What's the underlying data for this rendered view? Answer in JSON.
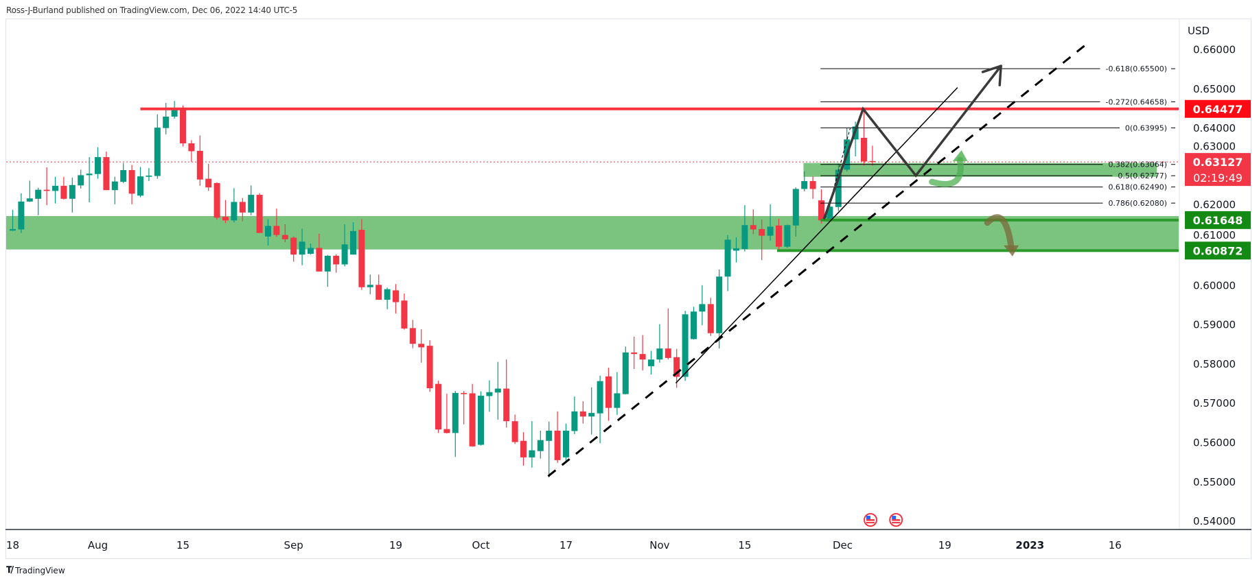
{
  "header": {
    "published_line": "Ross-J-Burland published on TradingView.com, Dec 06, 2022 14:40 UTC-5"
  },
  "footer": {
    "logo_text": "TradingView",
    "logo_mark": "TV"
  },
  "colors": {
    "up": "#089981",
    "down": "#f23645",
    "resistance_line": "#f7323f",
    "resistance_badge": "#ff0a14",
    "last_price_badge": "#f23645",
    "support_badge": "#138a13",
    "support_line": "#2a9a2a",
    "zone_fill": "#7bc47f",
    "drawing": "#3a3a3a",
    "trendline": "#000000"
  },
  "chart_data": {
    "type": "candlestick",
    "currency": "USD",
    "ylim": [
      0.54,
      0.66
    ],
    "y_ticks": [
      "0.66000",
      "0.65000",
      "0.64000",
      "0.63000",
      "0.62000",
      "0.61000",
      "0.60000",
      "0.59000",
      "0.58000",
      "0.57000",
      "0.56000",
      "0.55000",
      "0.54000"
    ],
    "y_tick_values": [
      0.66,
      0.65,
      0.64,
      0.63,
      0.62,
      0.61,
      0.6,
      0.59,
      0.58,
      0.57,
      0.56,
      0.55,
      0.54
    ],
    "x_ticks": [
      {
        "label": "18",
        "bar": 0,
        "bold": false
      },
      {
        "label": "Aug",
        "bar": 10,
        "bold": false
      },
      {
        "label": "15",
        "bar": 20,
        "bold": false
      },
      {
        "label": "Sep",
        "bar": 33,
        "bold": false
      },
      {
        "label": "19",
        "bar": 45,
        "bold": false
      },
      {
        "label": "Oct",
        "bar": 55,
        "bold": false
      },
      {
        "label": "17",
        "bar": 65,
        "bold": false
      },
      {
        "label": "Nov",
        "bar": 76,
        "bold": false
      },
      {
        "label": "15",
        "bar": 86,
        "bold": false
      },
      {
        "label": "Dec",
        "bar": 97.5,
        "bold": false
      },
      {
        "label": "19",
        "bar": 109.5,
        "bold": false
      },
      {
        "label": "2023",
        "bar": 119.5,
        "bold": true
      },
      {
        "label": "16",
        "bar": 129.5,
        "bold": false
      }
    ],
    "ohlc": [
      [
        0.6138,
        0.6191,
        0.6137,
        0.6142
      ],
      [
        0.6141,
        0.6233,
        0.6132,
        0.6212
      ],
      [
        0.6212,
        0.6265,
        0.6211,
        0.622
      ],
      [
        0.6219,
        0.6247,
        0.6177,
        0.6242
      ],
      [
        0.6242,
        0.6299,
        0.6203,
        0.6239
      ],
      [
        0.6239,
        0.6275,
        0.6207,
        0.6252
      ],
      [
        0.6252,
        0.6275,
        0.6217,
        0.6219
      ],
      [
        0.6219,
        0.6273,
        0.6184,
        0.6254
      ],
      [
        0.6253,
        0.6293,
        0.6245,
        0.6279
      ],
      [
        0.6279,
        0.6325,
        0.621,
        0.6283
      ],
      [
        0.6282,
        0.635,
        0.627,
        0.6325
      ],
      [
        0.6325,
        0.6339,
        0.6241,
        0.6241
      ],
      [
        0.6241,
        0.6275,
        0.6205,
        0.6263
      ],
      [
        0.6262,
        0.631,
        0.6259,
        0.6292
      ],
      [
        0.6292,
        0.6305,
        0.6205,
        0.6232
      ],
      [
        0.6227,
        0.63,
        0.6223,
        0.6276
      ],
      [
        0.6275,
        0.6297,
        0.6264,
        0.6278
      ],
      [
        0.6277,
        0.6434,
        0.627,
        0.64
      ],
      [
        0.6399,
        0.6463,
        0.6383,
        0.6428
      ],
      [
        0.6428,
        0.6468,
        0.6423,
        0.6446
      ],
      [
        0.6446,
        0.6456,
        0.6352,
        0.636
      ],
      [
        0.636,
        0.6368,
        0.6313,
        0.634
      ],
      [
        0.6341,
        0.638,
        0.6252,
        0.6268
      ],
      [
        0.627,
        0.6308,
        0.6239,
        0.6248
      ],
      [
        0.6259,
        0.6261,
        0.6166,
        0.6171
      ],
      [
        0.6173,
        0.6216,
        0.6157,
        0.6164
      ],
      [
        0.6164,
        0.6246,
        0.6159,
        0.6211
      ],
      [
        0.6211,
        0.6221,
        0.6162,
        0.6184
      ],
      [
        0.6184,
        0.6253,
        0.6177,
        0.6229
      ],
      [
        0.6229,
        0.6233,
        0.6132,
        0.6132
      ],
      [
        0.6123,
        0.6167,
        0.61,
        0.615
      ],
      [
        0.615,
        0.6194,
        0.6122,
        0.6127
      ],
      [
        0.6127,
        0.6154,
        0.6109,
        0.6116
      ],
      [
        0.612,
        0.6123,
        0.6059,
        0.6077
      ],
      [
        0.6077,
        0.6143,
        0.605,
        0.611
      ],
      [
        0.6079,
        0.6105,
        0.6077,
        0.6094
      ],
      [
        0.6094,
        0.613,
        0.6034,
        0.6034
      ],
      [
        0.6034,
        0.6076,
        0.5995,
        0.6074
      ],
      [
        0.6074,
        0.6078,
        0.6031,
        0.6052
      ],
      [
        0.6052,
        0.6154,
        0.6047,
        0.6103
      ],
      [
        0.6077,
        0.6159,
        0.6077,
        0.6137
      ],
      [
        0.614,
        0.6167,
        0.5987,
        0.5994
      ],
      [
        0.5994,
        0.6026,
        0.5976,
        0.6
      ],
      [
        0.6,
        0.6026,
        0.5962,
        0.5962
      ],
      [
        0.5962,
        0.5993,
        0.5938,
        0.5989
      ],
      [
        0.5986,
        0.6002,
        0.5927,
        0.5956
      ],
      [
        0.596,
        0.5978,
        0.5886,
        0.5889
      ],
      [
        0.589,
        0.5911,
        0.5839,
        0.585
      ],
      [
        0.585,
        0.5887,
        0.5802,
        0.5841
      ],
      [
        0.5845,
        0.5859,
        0.5728,
        0.5737
      ],
      [
        0.5748,
        0.5756,
        0.5623,
        0.5632
      ],
      [
        0.5633,
        0.5723,
        0.5622,
        0.5623
      ],
      [
        0.5623,
        0.573,
        0.5562,
        0.5725
      ],
      [
        0.5725,
        0.573,
        0.5645,
        0.5722
      ],
      [
        0.5724,
        0.5748,
        0.5588,
        0.5589
      ],
      [
        0.5593,
        0.5729,
        0.5591,
        0.5718
      ],
      [
        0.5717,
        0.5757,
        0.5677,
        0.5727
      ],
      [
        0.5726,
        0.5804,
        0.5657,
        0.5736
      ],
      [
        0.5736,
        0.581,
        0.5637,
        0.5653
      ],
      [
        0.5653,
        0.567,
        0.5595,
        0.56
      ],
      [
        0.5603,
        0.5625,
        0.554,
        0.5561
      ],
      [
        0.5561,
        0.5653,
        0.5535,
        0.5579
      ],
      [
        0.5577,
        0.5629,
        0.5558,
        0.5605
      ],
      [
        0.5603,
        0.5652,
        0.551,
        0.5629
      ],
      [
        0.5629,
        0.5678,
        0.5547,
        0.5554
      ],
      [
        0.5561,
        0.5647,
        0.555,
        0.5629
      ],
      [
        0.5628,
        0.5716,
        0.562,
        0.5678
      ],
      [
        0.5678,
        0.5704,
        0.5647,
        0.5665
      ],
      [
        0.5665,
        0.5739,
        0.5619,
        0.5674
      ],
      [
        0.5673,
        0.5769,
        0.5597,
        0.5755
      ],
      [
        0.5767,
        0.5789,
        0.5654,
        0.5687
      ],
      [
        0.5687,
        0.5778,
        0.5669,
        0.5724
      ],
      [
        0.5722,
        0.5843,
        0.5721,
        0.5828
      ],
      [
        0.5828,
        0.5868,
        0.5786,
        0.5824
      ],
      [
        0.5824,
        0.5872,
        0.5782,
        0.581
      ],
      [
        0.5793,
        0.5832,
        0.5772,
        0.581
      ],
      [
        0.581,
        0.59,
        0.5802,
        0.5838
      ],
      [
        0.5838,
        0.594,
        0.581,
        0.5814
      ],
      [
        0.5816,
        0.5837,
        0.5738,
        0.5766
      ],
      [
        0.5766,
        0.5934,
        0.5756,
        0.5925
      ],
      [
        0.5862,
        0.5944,
        0.5861,
        0.5932
      ],
      [
        0.5932,
        0.5999,
        0.5897,
        0.5951
      ],
      [
        0.5951,
        0.5967,
        0.587,
        0.5877
      ],
      [
        0.5877,
        0.6039,
        0.5838,
        0.6021
      ],
      [
        0.6021,
        0.6127,
        0.5984,
        0.6115
      ],
      [
        0.6087,
        0.6121,
        0.6057,
        0.6093
      ],
      [
        0.6091,
        0.6203,
        0.6085,
        0.6152
      ],
      [
        0.6152,
        0.6192,
        0.6129,
        0.6141
      ],
      [
        0.6142,
        0.6166,
        0.6063,
        0.6125
      ],
      [
        0.6125,
        0.6205,
        0.6112,
        0.6148
      ],
      [
        0.6151,
        0.6168,
        0.6089,
        0.6097
      ],
      [
        0.6097,
        0.6153,
        0.6094,
        0.6152
      ],
      [
        0.6151,
        0.6248,
        0.6123,
        0.6244
      ],
      [
        0.6244,
        0.6289,
        0.6238,
        0.6264
      ],
      [
        0.6264,
        0.6276,
        0.6219,
        0.6244
      ],
      [
        0.6215,
        0.6243,
        0.6156,
        0.6164
      ],
      [
        0.6164,
        0.6218,
        0.6161,
        0.6199
      ],
      [
        0.6198,
        0.6309,
        0.6188,
        0.6293
      ],
      [
        0.6293,
        0.6399,
        0.6288,
        0.637
      ],
      [
        0.637,
        0.6415,
        0.6327,
        0.6403
      ],
      [
        0.6374,
        0.6447,
        0.6304,
        0.6314
      ],
      [
        0.6315,
        0.6354,
        0.6303,
        0.6313
      ]
    ],
    "last_price": "0.63127",
    "countdown": "02:19:49",
    "levels": {
      "resistance": {
        "price": 0.64477,
        "label": "0.64477",
        "from_bar": 15
      },
      "support_top": {
        "price": 0.61648,
        "label": "0.61648",
        "from_bar": 94.9
      },
      "support_bottom": {
        "price": 0.60872,
        "label": "0.60872",
        "from_bar": 89.8
      }
    },
    "zones": [
      {
        "top": 0.6175,
        "bottom": 0.609,
        "from_bar": -2,
        "to_bar": 138.3
      },
      {
        "top": 0.631,
        "bottom": 0.6275,
        "from_bar": 92.9,
        "to_bar": 134.4
      }
    ],
    "fib_from_bar": 94.9,
    "fib_levels": [
      {
        "label": "-0.618(0.65500)",
        "price": 0.655
      },
      {
        "label": "-0.272(0.64658)",
        "price": 0.64658
      },
      {
        "label": "0(0.63995)",
        "price": 0.63995
      },
      {
        "label": "0.382(0.63064)",
        "price": 0.63064
      },
      {
        "label": "0.5(0.62777)",
        "price": 0.62777
      },
      {
        "label": "0.618(0.62490)",
        "price": 0.6249
      },
      {
        "label": "0.786(0.62080)",
        "price": 0.6208
      }
    ],
    "trendlines": [
      {
        "style": "solid",
        "points": [
          [
            77.9,
            0.575
          ],
          [
            111.0,
            0.6502
          ]
        ]
      },
      {
        "style": "dashed",
        "points": [
          [
            62.9,
            0.5513
          ],
          [
            126.0,
            0.661
          ]
        ]
      },
      {
        "style": "thin-dashed",
        "points": [
          [
            95.5,
            0.617
          ],
          [
            98.4,
            0.64
          ]
        ]
      }
    ],
    "projection_path": [
      [
        95.3,
        0.6167
      ],
      [
        99.9,
        0.64477
      ],
      [
        106.1,
        0.6278
      ],
      [
        116.1,
        0.6557
      ]
    ],
    "curved_arrows": [
      {
        "direction": "up",
        "color": "#4caf50",
        "points": [
          [
            108.0,
            0.6262
          ],
          [
            110.4,
            0.6255
          ],
          [
            111.3,
            0.6318
          ]
        ]
      },
      {
        "direction": "down",
        "color": "#7a6a3a",
        "points": [
          [
            114.5,
            0.6158
          ],
          [
            116.6,
            0.618
          ],
          [
            117.3,
            0.6097
          ]
        ]
      }
    ],
    "event_markers": [
      {
        "bar": 100,
        "icon": "us-flag-icon"
      },
      {
        "bar": 103,
        "icon": "us-flag-icon"
      }
    ]
  }
}
